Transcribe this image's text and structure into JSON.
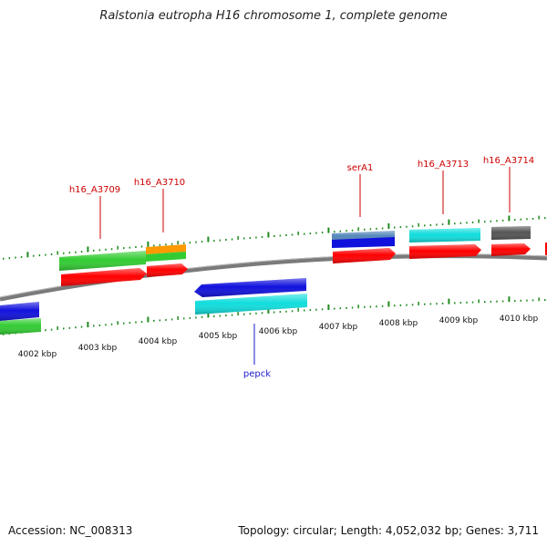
{
  "title": "Ralstonia eutropha H16 chromosome 1, complete genome",
  "footer": {
    "accession": "Accession: NC_008313",
    "topology": "Topology: circular; Length: 4,052,032 bp; Genes: 3,711"
  },
  "colors": {
    "backbone": "#7a7a7a",
    "ticks": "#1f8a1f",
    "label_forward": "#cc0000",
    "label_reverse": "#1a1acc",
    "red": "#ff0000",
    "green": "#33cc33",
    "orange": "#ff9900",
    "blue": "#1111dd",
    "steel": "#5588bb",
    "cyan": "#11dddd",
    "gray": "#555555"
  },
  "kbp_ticks": [
    "4002 kbp",
    "4003 kbp",
    "4004 kbp",
    "4005 kbp",
    "4006 kbp",
    "4007 kbp",
    "4008 kbp",
    "4009 kbp",
    "4010 kbp"
  ],
  "gene_labels": [
    "h16_A3709",
    "h16_A3710",
    "serA1",
    "h16_A3713",
    "h16_A3714",
    "pepck"
  ]
}
